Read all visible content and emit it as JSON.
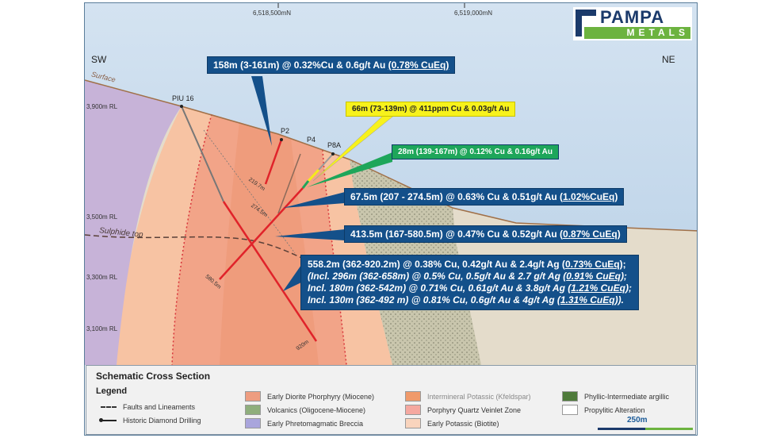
{
  "header": {
    "northings": [
      "6,518,500mN",
      "6,519,000mN"
    ],
    "directions": {
      "left": "SW",
      "right": "NE"
    },
    "logo": {
      "top": "PAMPA",
      "bottom": "METALS",
      "colors": {
        "navy": "#1b3a6b",
        "green": "#6cb33f"
      }
    }
  },
  "section": {
    "surface_label": "Surface",
    "sulphide_label": "Sulphide top",
    "rl_labels": [
      "3,900m RL",
      "3,500m RL",
      "3,300m RL",
      "3,100m RL"
    ],
    "holes": [
      "PIU 16",
      "P2",
      "P4",
      "P8A"
    ],
    "depths": [
      "219.7m",
      "274.5m",
      "580.5m",
      "920m"
    ]
  },
  "callouts": [
    {
      "text": "158m (3-161m) @ 0.32%Cu & 0.6g/t Au  ",
      "eq": "(0.78% CuEq)",
      "color": "#14508a"
    },
    {
      "text": "66m (73-139m) @ 411ppm Cu & 0.03g/t Au",
      "color": "#f7f21c"
    },
    {
      "text": "28m (139-167m) @ 0.12% Cu & 0.16g/t Au",
      "color": "#1ea65a"
    },
    {
      "text": "67.5m (207 - 274.5m) @ 0.63% Cu & 0.51g/t Au (",
      "eq": "1.02%CuEq",
      "tail": ")",
      "color": "#14508a"
    },
    {
      "text": "413.5m (167-580.5m) @ 0.47% Cu & 0.52g/t Au (",
      "eq": "0.87% CuEq",
      "tail": ")",
      "color": "#14508a"
    }
  ],
  "main_callout": {
    "line1": "558.2m (362-920.2m) @ 0.38% Cu, 0.42g/t Au & 2.4g/t Ag (",
    "line1_eq": "0.73% CuEq",
    "line1_tail": ");",
    "line2": "(Incl. 296m (362-658m) @ 0.5% Cu, 0.5g/t Au & 2.7 g/t Ag (",
    "line2_eq": "0.91% CuEq",
    "line2_tail": ");",
    "line3": "Incl. 180m (362-542m) @ 0.71% Cu, 0.61g/t Au & 3.8g/t Ag (",
    "line3_eq": "1.21% CuEq",
    "line3_tail": ");",
    "line4": "Incl. 130m (362-492 m) @ 0.81% Cu, 0.6g/t Au & 4g/t Ag (",
    "line4_eq": "1.31% CuEq",
    "line4_tail": "))."
  },
  "legend": {
    "title": "Schematic Cross Section",
    "subtitle": "Legend",
    "lines": [
      "Faults and Lineaments",
      "Historic Diamond Drilling"
    ],
    "items": [
      {
        "label": "Early Diorite Phorphyry (Miocene)",
        "color": "#ee9d80"
      },
      {
        "label": "Volcanics (Oligocene-Miocene)",
        "color": "#8fae7c"
      },
      {
        "label": "Early Phretomagmatic Breccia",
        "color": "#a9a5dc"
      },
      {
        "label": "Intermineral Potassic (Kfeldspar)",
        "color": "#f09a6a"
      },
      {
        "label": "Porphyry Quartz Veinlet Zone",
        "color": "#f5a8a0"
      },
      {
        "label": "Early Potassic (Biotite)",
        "color": "#f9d4bd"
      },
      {
        "label": "Phyllic-Intermediate argillic",
        "color": "#4e7a3a"
      },
      {
        "label": "Propylitic Alteration",
        "color": "#ffffff"
      }
    ],
    "scale": "250m"
  }
}
